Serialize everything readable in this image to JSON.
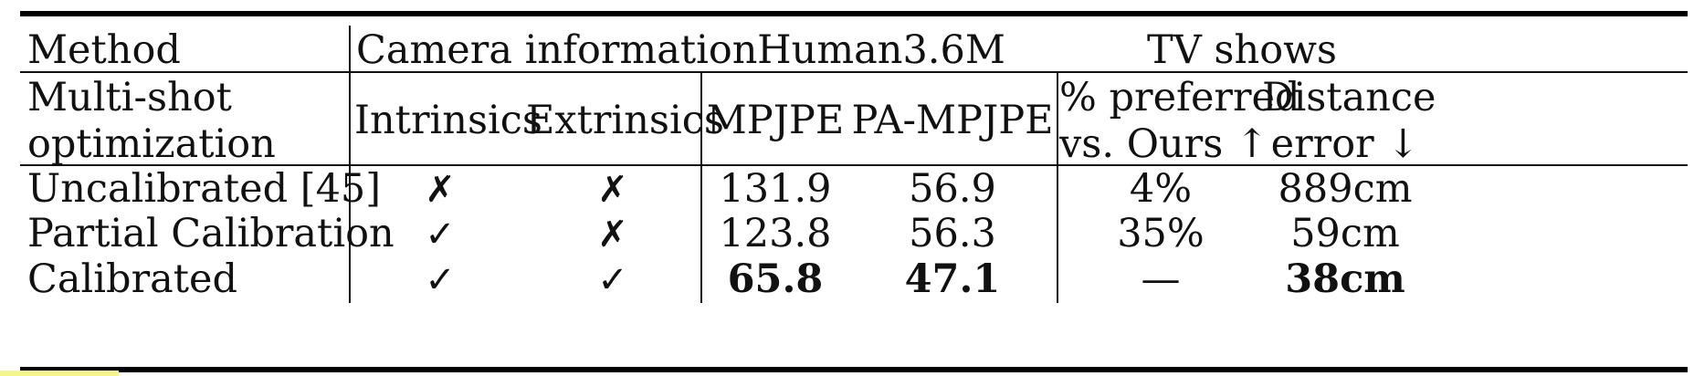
{
  "header": {
    "method": "Method",
    "camera_information": "Camera information",
    "human36m": "Human3.6M",
    "tv_shows": "TV shows",
    "multishot_line1": "Multi-shot",
    "multishot_line2": "optimization",
    "intrinsics": "Intrinsics",
    "extrinsics": "Extrinsics",
    "mpjpe": "MPJPE",
    "pa_mpjpe": "PA-MPJPE",
    "preferred_line1": "% preferred",
    "preferred_line2": "vs. Ours ↑",
    "distance_line1": "Distance",
    "distance_line2": "error ↓"
  },
  "rows": [
    {
      "method": "Uncalibrated [45]",
      "intrinsics": "✗",
      "extrinsics": "✗",
      "mpjpe": "131.9",
      "pa_mpjpe": "56.9",
      "preferred": "4%",
      "distance": "889cm"
    },
    {
      "method": "Partial Calibration",
      "intrinsics": "✓",
      "extrinsics": "✗",
      "mpjpe": "123.8",
      "pa_mpjpe": "56.3",
      "preferred": "35%",
      "distance": "59cm"
    },
    {
      "method": "Calibrated",
      "intrinsics": "✓",
      "extrinsics": "✓",
      "mpjpe": "65.8",
      "pa_mpjpe": "47.1",
      "preferred": "—",
      "distance": "38cm"
    }
  ]
}
